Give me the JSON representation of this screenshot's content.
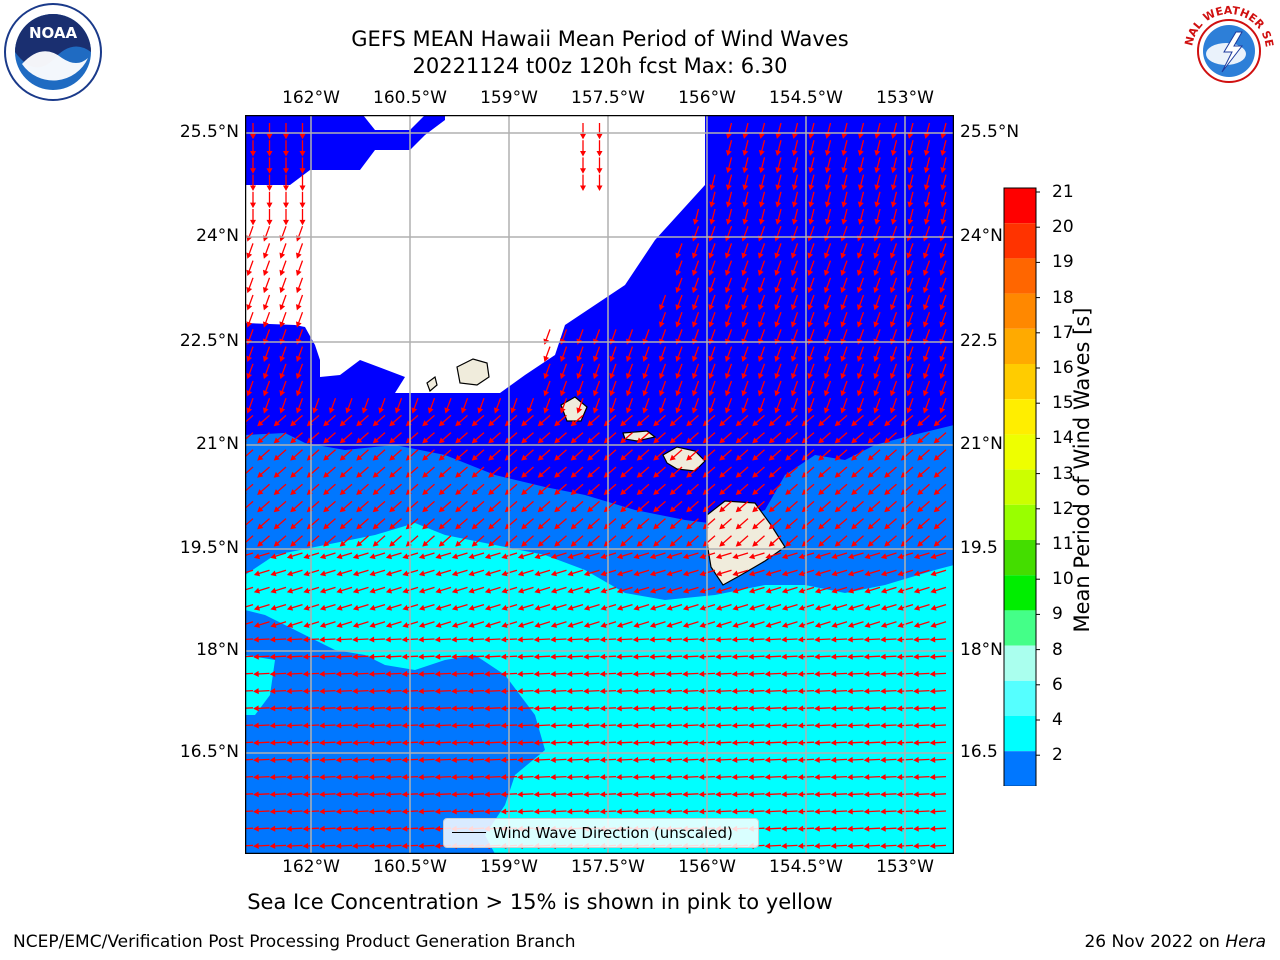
{
  "title": {
    "line1": "GEFS MEAN Hawaii Mean Period of Wind Waves",
    "line2": "20221124 t00z 120h fcst   Max: 6.30"
  },
  "logos": {
    "left": {
      "name": "noaa-logo",
      "text": "NOAA"
    },
    "right": {
      "name": "nws-logo",
      "text": "NATIONAL WEATHER SERVICE"
    }
  },
  "map": {
    "lon_ticks": [
      "162°W",
      "160.5°W",
      "159°W",
      "157.5°W",
      "156°W",
      "154.5°W",
      "153°W"
    ],
    "lat_ticks_left": [
      "25.5°N",
      "24°N",
      "22.5°N",
      "21°N",
      "19.5°N",
      "18°N",
      "16.5°N"
    ],
    "lat_ticks_right": [
      "25.5°N",
      "24°N",
      "22.5",
      "21°N",
      "19.5",
      "18°N",
      "16.5"
    ],
    "legend": "Wind Wave Direction (unscaled)",
    "colors": {
      "period_2_4": "#0077ff",
      "period_4_6": "#00ffff",
      "below_2": "#0000ff",
      "land": "#f0ecdc",
      "arrow": "#ff0000",
      "grid": "#b0b0b0"
    }
  },
  "colorbar": {
    "label": "Mean Period of Wind Waves [s]",
    "ticks": [
      "21",
      "20",
      "19",
      "18",
      "17",
      "16",
      "15",
      "14",
      "13",
      "12",
      "11",
      "10",
      "9",
      "8",
      "6",
      "4",
      "2"
    ],
    "colors": [
      "#ff0000",
      "#ff3300",
      "#ff6600",
      "#ff8800",
      "#ffaa00",
      "#ffcc00",
      "#ffee00",
      "#eeff00",
      "#ccff00",
      "#99ff00",
      "#44dd00",
      "#00ee00",
      "#44ff88",
      "#aaffee",
      "#55ffff",
      "#00ffff",
      "#0077ff"
    ],
    "extend_color": "#0000ff"
  },
  "footnote": "Sea Ice Concentration > 15% is shown in pink to yellow",
  "credit_left": "NCEP/EMC/Verification Post Processing Product Generation Branch",
  "credit_right_date": "26 Nov 2022 on",
  "credit_right_host": "Hera"
}
